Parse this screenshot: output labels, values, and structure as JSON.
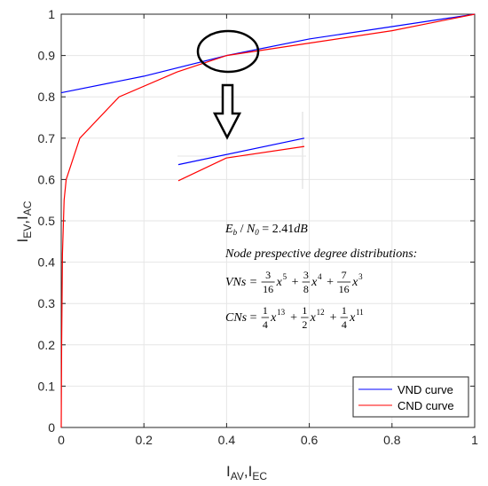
{
  "chart_data": {
    "type": "line",
    "title": "",
    "xlabel": {
      "main": "I",
      "sub1": "AV",
      "sep": ",",
      "main2": "I",
      "sub2": "EC"
    },
    "ylabel": {
      "main": "I",
      "sub1": "EV",
      "sep": ",",
      "main2": "I",
      "sub2": "AC"
    },
    "xlim": [
      0,
      1
    ],
    "ylim": [
      0,
      1
    ],
    "xticks": [
      "0",
      "0.2",
      "0.4",
      "0.6",
      "0.8",
      "1"
    ],
    "yticks": [
      "0",
      "0.1",
      "0.2",
      "0.3",
      "0.4",
      "0.5",
      "0.6",
      "0.7",
      "0.8",
      "0.9",
      "1"
    ],
    "grid": true,
    "legend_position": "bottom-right",
    "series": [
      {
        "name": "VND curve",
        "color": "#0000ff",
        "x": [
          0,
          0.2,
          0.4,
          0.6,
          0.8,
          1.0
        ],
        "y": [
          0.81,
          0.85,
          0.9,
          0.94,
          0.97,
          1.0
        ]
      },
      {
        "name": "CND curve",
        "color": "#ff0000",
        "x": [
          0,
          0.001,
          0.003,
          0.007,
          0.012,
          0.045,
          0.14,
          0.28,
          0.4,
          0.6,
          0.8,
          1.0
        ],
        "y": [
          0,
          0.2,
          0.42,
          0.55,
          0.6,
          0.7,
          0.8,
          0.86,
          0.9,
          0.93,
          0.96,
          1.0
        ]
      }
    ],
    "annotations": {
      "ebn0": {
        "lhs": "E",
        "lhs_sub": "b",
        "slash": " / ",
        "n": "N",
        "n_sub": "0",
        "eq": " = 2.41",
        "unit": "dB"
      },
      "subtitle": "Node prespective degree distributions:",
      "vns": {
        "label": "VNs",
        "terms": [
          {
            "num": "3",
            "den": "16",
            "exp": "5"
          },
          {
            "num": "3",
            "den": "8",
            "exp": "4"
          },
          {
            "num": "7",
            "den": "16",
            "exp": "3"
          }
        ]
      },
      "cns": {
        "label": "CNs",
        "terms": [
          {
            "num": "1",
            "den": "4",
            "exp": "13"
          },
          {
            "num": "1",
            "den": "2",
            "exp": "12"
          },
          {
            "num": "1",
            "den": "4",
            "exp": "11"
          }
        ]
      },
      "zoom_inset": {
        "blue_y": [
          0.636,
          0.7
        ],
        "red_x_frac": [
          0,
          0.38,
          1
        ],
        "red_y": [
          0.597,
          0.652,
          0.68
        ]
      },
      "zoom_region_center": [
        0.4,
        0.9
      ]
    }
  }
}
